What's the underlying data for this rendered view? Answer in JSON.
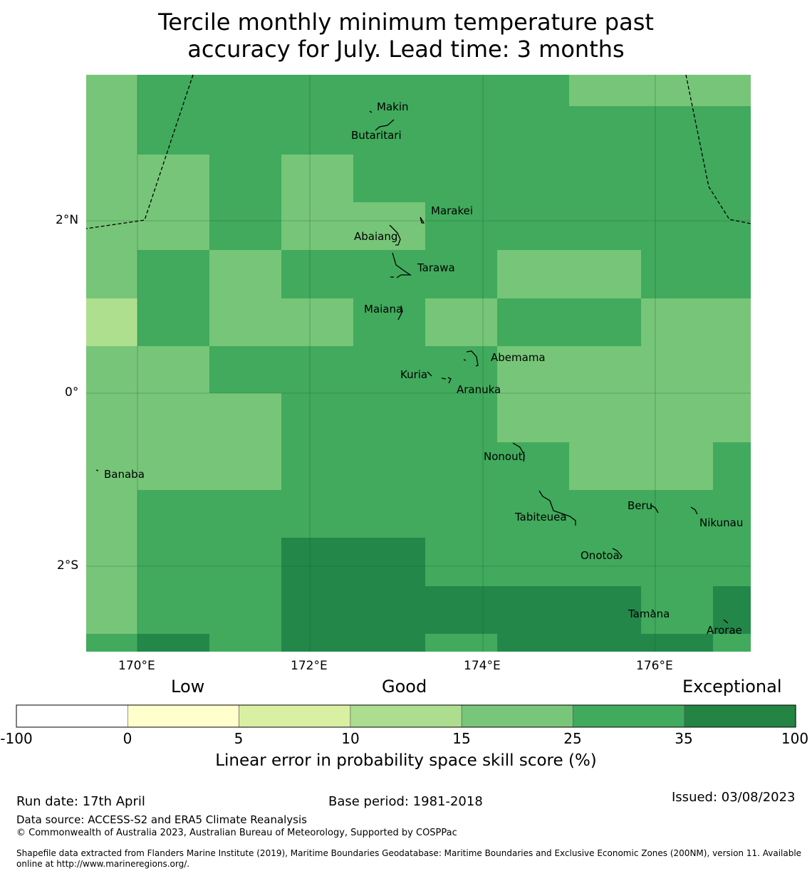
{
  "title": {
    "line1": "Tercile monthly minimum temperature past",
    "line2": "accuracy for July. Lead time: 3 months"
  },
  "map": {
    "lat_ticks": [
      "2°N",
      "0°",
      "2°S"
    ],
    "lon_ticks": [
      "170°E",
      "172°E",
      "174°E",
      "176°E"
    ],
    "grid_colors": {
      "A": "#77c579",
      "B": "#41aa5d",
      "C": "#24874a",
      "L": "#addf8e"
    },
    "grid_rows": [
      "ABBBBBBB",
      "ABBBBBBB",
      "ABBBBBBB",
      "ABBBBBBB",
      "AAAAAAAA",
      "AAAAAAAA",
      "AAAAAAAA",
      "ABBBBBBB",
      "ABBBBBBB",
      "ABBBBBBB",
      "ABBBBBBB",
      "ABBBBBBB",
      "ABBBBBBB",
      "ABBBBBBB",
      "ABBBBBBB",
      "ABBBBBBB"
    ],
    "islands": [
      "Makin",
      "Butaritari",
      "Marakei",
      "Abaiang",
      "Tarawa",
      "Maiana",
      "Abemama",
      "Kuria",
      "Aranuka",
      "Nonouti",
      "Banaba",
      "Beru",
      "Nikunau",
      "Tabiteuea",
      "Onotoa",
      "Tamana",
      "Arorae"
    ]
  },
  "colorbar": {
    "headings": {
      "low": "Low",
      "good": "Good",
      "exceptional": "Exceptional"
    },
    "colors": [
      "#ffffff",
      "#ffffcc",
      "#d9f0a3",
      "#addd8e",
      "#78c679",
      "#41ab5d",
      "#238443"
    ],
    "ticks": [
      "-100",
      "0",
      "5",
      "10",
      "15",
      "25",
      "35",
      "100"
    ],
    "label": "Linear error in probability space skill score (%)"
  },
  "footer": {
    "run_date": "Run date: 17th April",
    "base_period": "Base period: 1981-2018",
    "issued": "Issued: 03/08/2023",
    "data_source": "Data source: ACCESS-S2 and ERA5 Climate Reanalysis",
    "copyright": "© Commonwealth of Australia 2023, Australian Bureau of Meteorology, Supported by COSPPac",
    "shapefile_line1": "Shapefile data extracted from Flanders Marine Institute (2019), Maritime Boundaries Geodatabase: Maritime Boundaries and Exclusive Economic Zones (200NM), version 11. Available",
    "shapefile_line2": "online at http://www.marineregions.org/."
  }
}
